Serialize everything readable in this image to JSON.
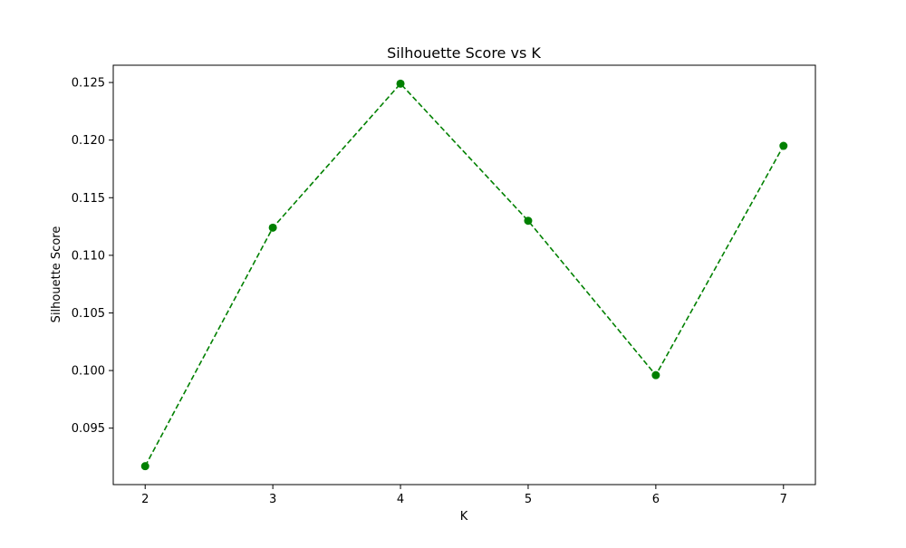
{
  "chart_data": {
    "type": "line",
    "title": "Silhouette Score vs K",
    "xlabel": "K",
    "ylabel": "Silhouette Score",
    "x": [
      2,
      3,
      4,
      5,
      6,
      7
    ],
    "series": [
      {
        "values": [
          0.0917,
          0.1124,
          0.1249,
          0.113,
          0.0996,
          0.1195
        ],
        "color": "#008000",
        "line_style": "dashed",
        "marker": "circle"
      }
    ],
    "xticks": [
      2,
      3,
      4,
      5,
      6,
      7
    ],
    "xtick_labels": [
      "2",
      "3",
      "4",
      "5",
      "6",
      "7"
    ],
    "yticks": [
      0.095,
      0.1,
      0.105,
      0.11,
      0.115,
      0.12,
      0.125
    ],
    "ytick_labels": [
      "0.095",
      "0.100",
      "0.105",
      "0.110",
      "0.115",
      "0.120",
      "0.125"
    ],
    "xlim": [
      1.75,
      7.25
    ],
    "ylim": [
      0.0901,
      0.1265
    ],
    "grid": false,
    "legend": "none"
  }
}
